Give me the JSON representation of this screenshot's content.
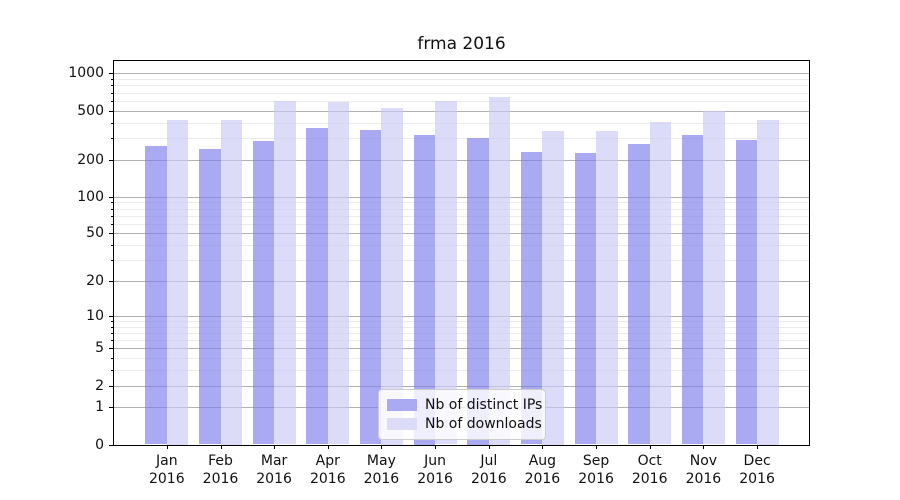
{
  "chart_data": {
    "type": "bar",
    "title": "frma 2016",
    "categories": [
      "Jan 2016",
      "Feb 2016",
      "Mar 2016",
      "Apr 2016",
      "May 2016",
      "Jun 2016",
      "Jul 2016",
      "Aug 2016",
      "Sep 2016",
      "Oct 2016",
      "Nov 2016",
      "Dec 2016"
    ],
    "series": [
      {
        "name": "Nb of distinct IPs",
        "color": "#aaaaf2",
        "values": [
          260,
          245,
          285,
          360,
          350,
          320,
          300,
          230,
          225,
          270,
          315,
          290
        ]
      },
      {
        "name": "Nb of downloads",
        "color": "#dcdcf9",
        "values": [
          420,
          420,
          600,
          590,
          525,
          600,
          645,
          345,
          340,
          405,
          495,
          420
        ]
      }
    ],
    "y_scale": "log1p",
    "y_ticks": [
      0,
      1,
      2,
      5,
      10,
      20,
      50,
      100,
      200,
      500,
      1000
    ],
    "y_minor_ticks": [
      3,
      4,
      6,
      7,
      8,
      9,
      30,
      40,
      60,
      70,
      80,
      90,
      300,
      400,
      600,
      700,
      800,
      900
    ],
    "ylim": [
      0,
      1260
    ],
    "xlabel": "",
    "ylabel": "",
    "grid": true,
    "legend_position": "lower center",
    "colors": {
      "major_grid": "#b2b2b2",
      "minor_grid": "#ebebeb",
      "axis": "#000000",
      "background": "#ffffff"
    }
  }
}
